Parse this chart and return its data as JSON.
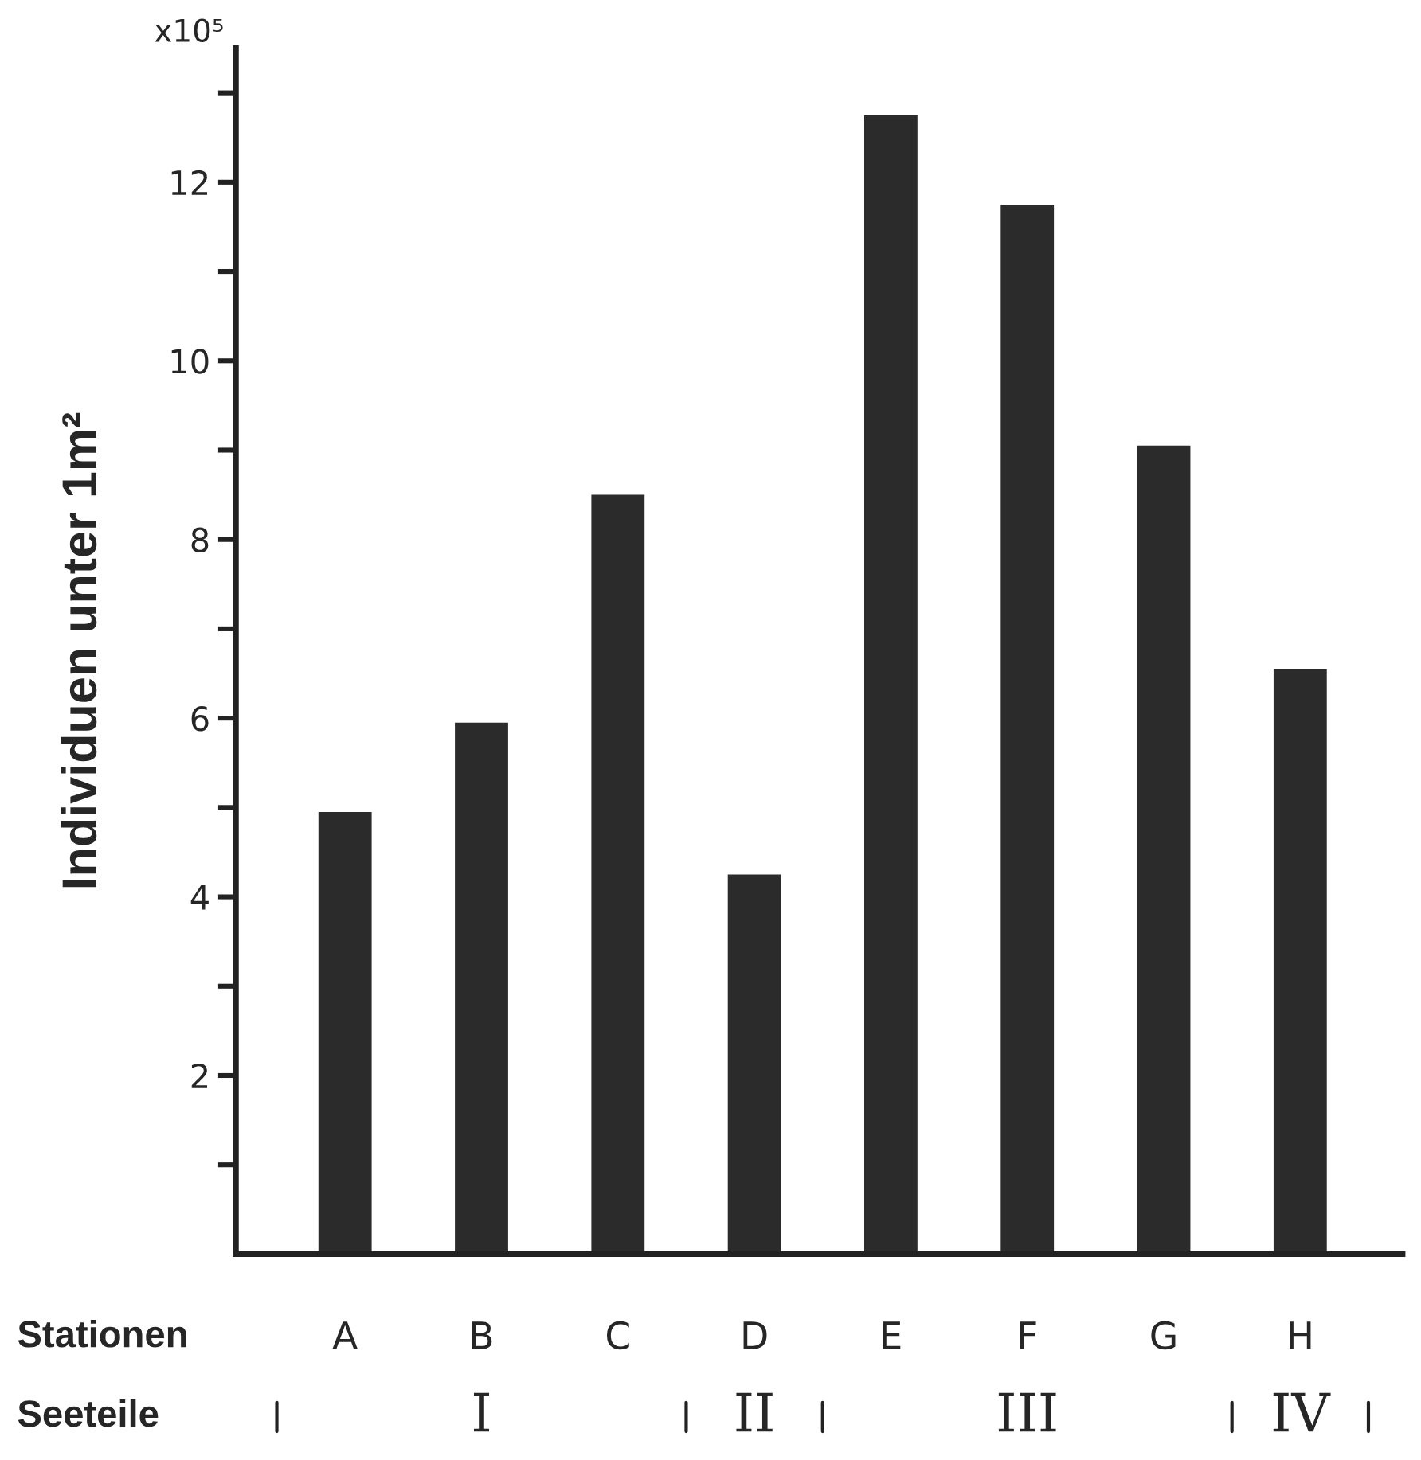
{
  "chart_data": {
    "type": "bar",
    "ylabel": "Individuen unter 1m²",
    "categories": [
      "A",
      "B",
      "C",
      "D",
      "E",
      "F",
      "G",
      "H"
    ],
    "values": [
      4.95,
      5.95,
      8.5,
      4.25,
      12.75,
      11.75,
      9.05,
      6.55
    ],
    "color": "#2b2b2b",
    "ylim": [
      0,
      13.5
    ],
    "yticks": [
      {
        "value": 1,
        "label": null
      },
      2,
      {
        "value": 3,
        "label": null
      },
      4,
      {
        "value": 5,
        "label": null
      },
      6,
      {
        "value": 7,
        "label": null
      },
      8,
      {
        "value": 9,
        "label": null
      },
      10,
      {
        "value": 11,
        "label": null
      },
      12,
      {
        "value": 13,
        "label": null
      }
    ],
    "grid": false,
    "annotations": [
      "x10⁵",
      "Stationen",
      "Seeteile",
      "I",
      "II",
      "III",
      "IV"
    ]
  }
}
